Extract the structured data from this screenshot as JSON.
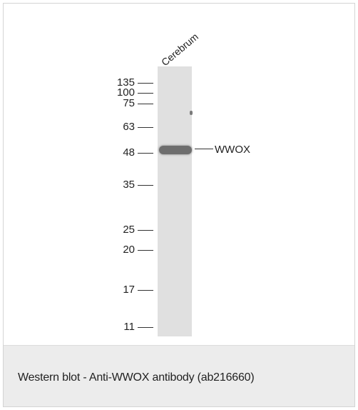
{
  "blot": {
    "lane_label": "Cerebrum",
    "target_label": "WWOX",
    "markers": [
      "135",
      "100",
      "75",
      "63",
      "48",
      "35",
      "25",
      "20",
      "17",
      "11"
    ]
  },
  "caption": "Western blot - Anti-WWOX antibody (ab216660)"
}
